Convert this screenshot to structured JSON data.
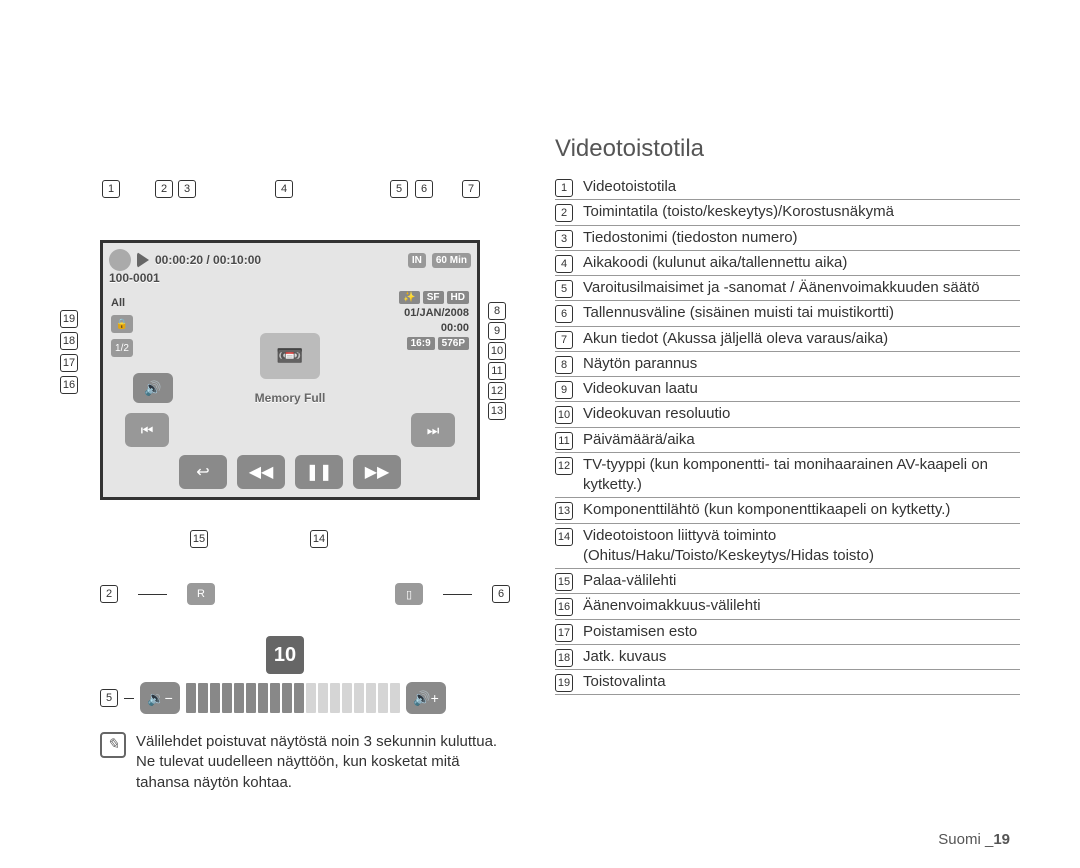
{
  "heading": "Videotoistotila",
  "legend": [
    {
      "n": "1",
      "text": "Videotoistotila"
    },
    {
      "n": "2",
      "text": "Toimintatila (toisto/keskeytys)/Korostusnäkymä"
    },
    {
      "n": "3",
      "text": "Tiedostonimi (tiedoston numero)"
    },
    {
      "n": "4",
      "text": "Aikakoodi (kulunut aika/tallennettu aika)"
    },
    {
      "n": "5",
      "text": "Varoitusilmaisimet ja -sanomat / Äänenvoimakkuuden säätö"
    },
    {
      "n": "6",
      "text": "Tallennusväline (sisäinen muisti tai muistikortti)"
    },
    {
      "n": "7",
      "text": "Akun tiedot (Akussa jäljellä oleva varaus/aika)"
    },
    {
      "n": "8",
      "text": "Näytön parannus"
    },
    {
      "n": "9",
      "text": "Videokuvan laatu"
    },
    {
      "n": "10",
      "text": "Videokuvan resoluutio"
    },
    {
      "n": "11",
      "text": "Päivämäärä/aika"
    },
    {
      "n": "12",
      "text": "TV-tyyppi (kun komponentti- tai monihaarainen AV-kaapeli on kytketty.)"
    },
    {
      "n": "13",
      "text": "Komponenttilähtö (kun komponenttikaapeli on kytketty.)"
    },
    {
      "n": "14",
      "text": "Videotoistoon liittyvä toiminto (Ohitus/Haku/Toisto/Keskeytys/Hidas toisto)"
    },
    {
      "n": "15",
      "text": "Palaa-välilehti"
    },
    {
      "n": "16",
      "text": "Äänenvoimakkuus-välilehti"
    },
    {
      "n": "17",
      "text": "Poistamisen esto"
    },
    {
      "n": "18",
      "text": "Jatk. kuvaus"
    },
    {
      "n": "19",
      "text": "Toistovalinta"
    }
  ],
  "screen": {
    "timecode": "00:00:20 / 00:10:00",
    "filename": "100-0001",
    "in_label": "IN",
    "batt_label": "60 Min",
    "date": "01/JAN/2008",
    "time": "00:00",
    "memfull": "Memory Full",
    "sf": "SF",
    "hd": "HD",
    "ratio": "16:9",
    "p576": "576P",
    "all": "All"
  },
  "callouts_top": [
    "1",
    "2",
    "3",
    "4",
    "5",
    "6",
    "7"
  ],
  "callouts_right": [
    "8",
    "9",
    "10",
    "11",
    "12",
    "13"
  ],
  "callouts_left": [
    "19",
    "18",
    "17",
    "16"
  ],
  "callouts_bottom": [
    "15",
    "14"
  ],
  "sub_left": "2",
  "sub_right": "6",
  "big10": "10",
  "note": "Välilehdet poistuvat näytöstä noin 3 sekunnin kuluttua. Ne tulevat uudelleen näyttöön, kun kosketat mitä tahansa näytön kohtaa.",
  "footer_lang": "Suomi _",
  "footer_page": "19",
  "volume": {
    "level": 10,
    "segments": 18
  },
  "colors": {
    "border": "#333333",
    "screen_bg": "#e5e5e5",
    "btn": "#8a8a8a",
    "badge": "#888888"
  }
}
